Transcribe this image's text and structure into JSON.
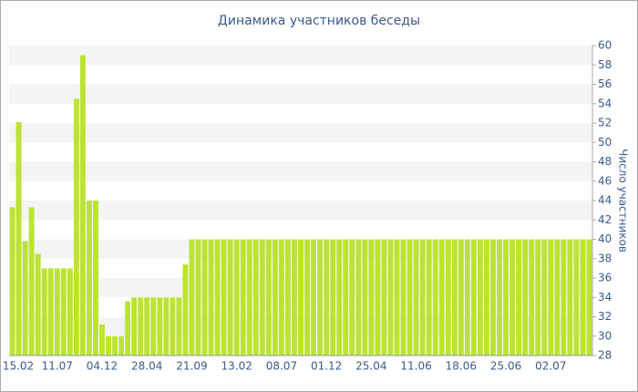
{
  "chart_data": {
    "type": "bar",
    "title": "Динамика участников беседы",
    "y_label": "Число участников",
    "color": "#bce333",
    "categories": [
      "15.02",
      null,
      null,
      null,
      null,
      null,
      null,
      "11.07",
      null,
      null,
      null,
      null,
      null,
      null,
      "04.12",
      null,
      null,
      null,
      null,
      null,
      null,
      "28.04",
      null,
      null,
      null,
      null,
      null,
      null,
      "21.09",
      null,
      null,
      null,
      null,
      null,
      null,
      "13.02",
      null,
      null,
      null,
      null,
      null,
      null,
      "08.07",
      null,
      null,
      null,
      null,
      null,
      null,
      "01.12",
      null,
      null,
      null,
      null,
      null,
      null,
      "25.04",
      null,
      null,
      null,
      null,
      null,
      null,
      "11.06",
      null,
      null,
      null,
      null,
      null,
      null,
      "18.06",
      null,
      null,
      null,
      null,
      null,
      null,
      "25.06",
      null,
      null,
      null,
      null,
      null,
      null,
      "02.07",
      null,
      null,
      null,
      null,
      null,
      null
    ],
    "values": [
      43.3,
      52.1,
      39.8,
      43.3,
      38.5,
      37,
      37,
      37,
      37,
      37,
      54.5,
      59,
      44,
      44,
      31.2,
      30,
      30,
      30,
      33.6,
      34,
      34,
      34,
      34,
      34,
      34,
      34,
      34,
      37.4,
      40,
      40,
      40,
      40,
      40,
      40,
      40,
      40,
      40,
      40,
      40,
      40,
      40,
      40,
      40,
      40,
      40,
      40,
      40,
      40,
      40,
      40,
      40,
      40,
      40,
      40,
      40,
      40,
      40,
      40,
      40,
      40,
      40,
      40,
      40,
      40,
      40,
      40,
      40,
      40,
      40,
      40,
      40,
      40,
      40,
      40,
      40,
      40,
      40,
      40,
      40,
      40,
      40,
      40,
      40,
      40,
      40,
      40,
      40,
      40,
      40,
      40,
      40
    ],
    "ylim": [
      28,
      60
    ],
    "yticks": [
      28,
      30,
      32,
      34,
      36,
      38,
      40,
      42,
      44,
      46,
      48,
      50,
      52,
      54,
      56,
      58,
      60
    ],
    "grid": true
  }
}
